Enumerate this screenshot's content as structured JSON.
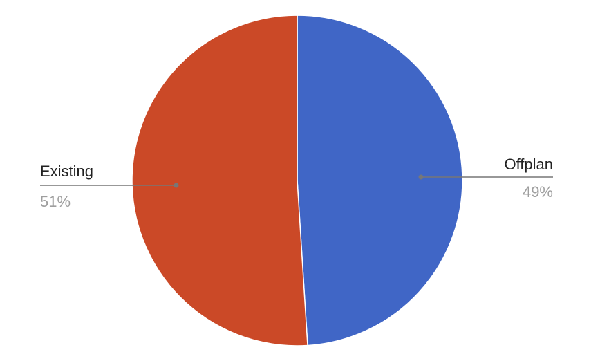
{
  "chart_data": {
    "type": "pie",
    "title": "",
    "start_angle_deg": 0,
    "direction": "clockwise",
    "slices": [
      {
        "label": "Offplan",
        "value": 49,
        "percent_label": "49%",
        "color": "#4066c6"
      },
      {
        "label": "Existing",
        "value": 51,
        "percent_label": "51%",
        "color": "#cb4927"
      }
    ],
    "legend": "none",
    "leader_line_color": "#777777"
  }
}
